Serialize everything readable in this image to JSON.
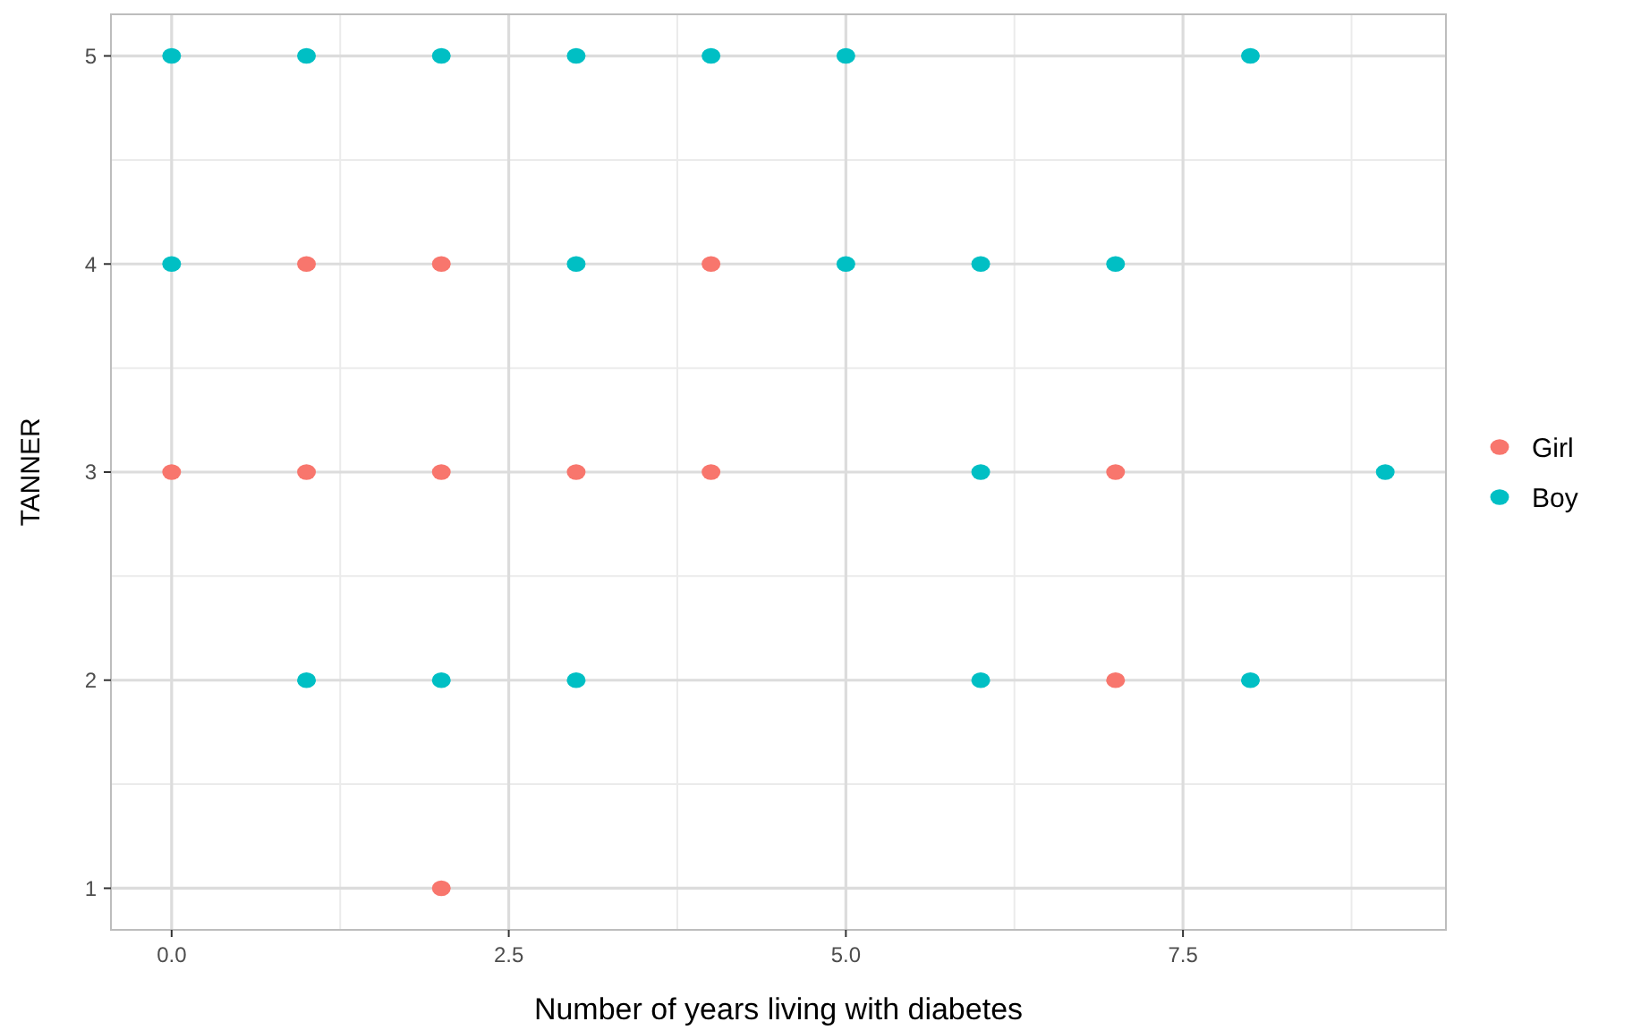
{
  "chart_data": {
    "type": "scatter",
    "xlabel": "Number of years living with diabetes",
    "ylabel": "TANNER",
    "xlim": [
      -0.45,
      9.45
    ],
    "ylim": [
      0.8,
      5.2
    ],
    "xticks": [
      {
        "value": 0,
        "label": "0.0"
      },
      {
        "value": 2.5,
        "label": "2.5"
      },
      {
        "value": 5,
        "label": "5.0"
      },
      {
        "value": 7.5,
        "label": "7.5"
      }
    ],
    "yticks": [
      1,
      2,
      3,
      4,
      5
    ],
    "grid": true,
    "legend": "right",
    "marker": "circle",
    "series": [
      {
        "name": "Girl",
        "color": "#f8766d",
        "x": [
          0,
          1,
          1,
          2,
          2,
          2,
          3,
          4,
          4,
          7,
          7
        ],
        "values": [
          3,
          4,
          3,
          4,
          3,
          1,
          3,
          4,
          3,
          3,
          2
        ]
      },
      {
        "name": "Boy",
        "color": "#00bfc4",
        "x": [
          0,
          1,
          2,
          3,
          4,
          5,
          8,
          0,
          3,
          5,
          6,
          7,
          6,
          9,
          1,
          2,
          3,
          6,
          8
        ],
        "values": [
          5,
          5,
          5,
          5,
          5,
          5,
          5,
          4,
          4,
          4,
          4,
          4,
          3,
          3,
          2,
          2,
          2,
          2,
          2
        ]
      }
    ]
  }
}
